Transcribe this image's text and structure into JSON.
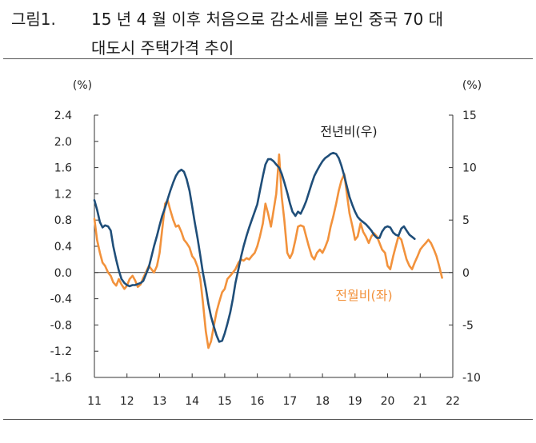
{
  "figure": {
    "label": "그림1.",
    "title_line1": "15 년 4 월 이후 처음으로 감소세를 보인 중국 70 대",
    "title_line2": "대도시 주택가격 추이"
  },
  "chart_data": {
    "type": "line",
    "left_axis_unit": "(%)",
    "right_axis_unit": "(%)",
    "left_ylim": [
      -1.6,
      2.4
    ],
    "right_ylim": [
      -10,
      15
    ],
    "left_ticks": [
      "2.4",
      "2.0",
      "1.6",
      "1.2",
      "0.8",
      "0.4",
      "0.0",
      "-0.4",
      "-0.8",
      "-1.2",
      "-1.6"
    ],
    "right_ticks": [
      "15",
      "10",
      "5",
      "0",
      "-5",
      "-10"
    ],
    "x_tick_labels": [
      "11",
      "12",
      "13",
      "14",
      "15",
      "16",
      "17",
      "18",
      "19",
      "20",
      "21",
      "22"
    ],
    "xlim": [
      2011.0,
      2022.0
    ],
    "grid": false,
    "series": [
      {
        "name": "전월비(좌)",
        "axis": "left",
        "color": "#F2923C",
        "points": [
          [
            2011.0,
            0.82
          ],
          [
            2011.08,
            0.5
          ],
          [
            2011.17,
            0.3
          ],
          [
            2011.25,
            0.15
          ],
          [
            2011.33,
            0.1
          ],
          [
            2011.42,
            0.0
          ],
          [
            2011.5,
            -0.05
          ],
          [
            2011.58,
            -0.15
          ],
          [
            2011.67,
            -0.2
          ],
          [
            2011.75,
            -0.1
          ],
          [
            2011.83,
            -0.18
          ],
          [
            2011.92,
            -0.25
          ],
          [
            2012.0,
            -0.2
          ],
          [
            2012.08,
            -0.1
          ],
          [
            2012.17,
            -0.05
          ],
          [
            2012.25,
            -0.12
          ],
          [
            2012.33,
            -0.22
          ],
          [
            2012.42,
            -0.18
          ],
          [
            2012.5,
            -0.08
          ],
          [
            2012.58,
            0.0
          ],
          [
            2012.67,
            0.1
          ],
          [
            2012.75,
            0.05
          ],
          [
            2012.83,
            0.0
          ],
          [
            2012.92,
            0.1
          ],
          [
            2013.0,
            0.3
          ],
          [
            2013.08,
            0.65
          ],
          [
            2013.17,
            1.05
          ],
          [
            2013.25,
            1.1
          ],
          [
            2013.33,
            0.95
          ],
          [
            2013.42,
            0.8
          ],
          [
            2013.5,
            0.7
          ],
          [
            2013.58,
            0.72
          ],
          [
            2013.67,
            0.62
          ],
          [
            2013.75,
            0.5
          ],
          [
            2013.83,
            0.45
          ],
          [
            2013.92,
            0.38
          ],
          [
            2014.0,
            0.25
          ],
          [
            2014.08,
            0.2
          ],
          [
            2014.17,
            0.08
          ],
          [
            2014.25,
            -0.1
          ],
          [
            2014.33,
            -0.45
          ],
          [
            2014.42,
            -0.9
          ],
          [
            2014.5,
            -1.15
          ],
          [
            2014.58,
            -1.05
          ],
          [
            2014.67,
            -0.8
          ],
          [
            2014.75,
            -0.6
          ],
          [
            2014.83,
            -0.45
          ],
          [
            2014.92,
            -0.3
          ],
          [
            2015.0,
            -0.25
          ],
          [
            2015.08,
            -0.1
          ],
          [
            2015.17,
            -0.05
          ],
          [
            2015.25,
            0.0
          ],
          [
            2015.33,
            0.05
          ],
          [
            2015.42,
            0.15
          ],
          [
            2015.5,
            0.2
          ],
          [
            2015.58,
            0.18
          ],
          [
            2015.67,
            0.22
          ],
          [
            2015.75,
            0.2
          ],
          [
            2015.83,
            0.25
          ],
          [
            2015.92,
            0.3
          ],
          [
            2016.0,
            0.4
          ],
          [
            2016.08,
            0.55
          ],
          [
            2016.17,
            0.75
          ],
          [
            2016.25,
            1.05
          ],
          [
            2016.33,
            0.9
          ],
          [
            2016.42,
            0.7
          ],
          [
            2016.5,
            0.95
          ],
          [
            2016.58,
            1.2
          ],
          [
            2016.67,
            1.8
          ],
          [
            2016.75,
            1.15
          ],
          [
            2016.83,
            0.8
          ],
          [
            2016.92,
            0.3
          ],
          [
            2017.0,
            0.22
          ],
          [
            2017.08,
            0.3
          ],
          [
            2017.17,
            0.5
          ],
          [
            2017.25,
            0.7
          ],
          [
            2017.33,
            0.72
          ],
          [
            2017.42,
            0.7
          ],
          [
            2017.5,
            0.55
          ],
          [
            2017.58,
            0.4
          ],
          [
            2017.67,
            0.25
          ],
          [
            2017.75,
            0.2
          ],
          [
            2017.83,
            0.3
          ],
          [
            2017.92,
            0.35
          ],
          [
            2018.0,
            0.3
          ],
          [
            2018.08,
            0.38
          ],
          [
            2018.17,
            0.5
          ],
          [
            2018.25,
            0.7
          ],
          [
            2018.33,
            0.85
          ],
          [
            2018.42,
            1.05
          ],
          [
            2018.5,
            1.25
          ],
          [
            2018.58,
            1.4
          ],
          [
            2018.67,
            1.5
          ],
          [
            2018.75,
            1.2
          ],
          [
            2018.83,
            0.9
          ],
          [
            2018.92,
            0.7
          ],
          [
            2019.0,
            0.5
          ],
          [
            2019.08,
            0.55
          ],
          [
            2019.17,
            0.75
          ],
          [
            2019.25,
            0.62
          ],
          [
            2019.33,
            0.55
          ],
          [
            2019.42,
            0.45
          ],
          [
            2019.5,
            0.55
          ],
          [
            2019.58,
            0.6
          ],
          [
            2019.67,
            0.55
          ],
          [
            2019.75,
            0.45
          ],
          [
            2019.83,
            0.35
          ],
          [
            2019.92,
            0.3
          ],
          [
            2020.0,
            0.1
          ],
          [
            2020.08,
            0.05
          ],
          [
            2020.17,
            0.25
          ],
          [
            2020.25,
            0.4
          ],
          [
            2020.33,
            0.55
          ],
          [
            2020.42,
            0.5
          ],
          [
            2020.5,
            0.35
          ],
          [
            2020.58,
            0.2
          ],
          [
            2020.67,
            0.1
          ],
          [
            2020.75,
            0.05
          ],
          [
            2020.83,
            0.15
          ],
          [
            2020.92,
            0.25
          ],
          [
            2021.0,
            0.35
          ],
          [
            2021.08,
            0.4
          ],
          [
            2021.17,
            0.45
          ],
          [
            2021.25,
            0.5
          ],
          [
            2021.33,
            0.45
          ],
          [
            2021.42,
            0.35
          ],
          [
            2021.5,
            0.25
          ],
          [
            2021.58,
            0.1
          ],
          [
            2021.67,
            -0.08
          ]
        ]
      },
      {
        "name": "전년비(우)",
        "axis": "right",
        "color": "#1F4E79",
        "points": [
          [
            2011.0,
            6.9
          ],
          [
            2011.08,
            6.0
          ],
          [
            2011.17,
            4.8
          ],
          [
            2011.25,
            4.3
          ],
          [
            2011.33,
            4.5
          ],
          [
            2011.42,
            4.4
          ],
          [
            2011.5,
            4.0
          ],
          [
            2011.58,
            2.5
          ],
          [
            2011.67,
            1.2
          ],
          [
            2011.75,
            0.2
          ],
          [
            2011.83,
            -0.6
          ],
          [
            2011.92,
            -1.0
          ],
          [
            2012.0,
            -1.2
          ],
          [
            2012.08,
            -1.3
          ],
          [
            2012.17,
            -1.2
          ],
          [
            2012.25,
            -1.2
          ],
          [
            2012.33,
            -1.1
          ],
          [
            2012.42,
            -1.0
          ],
          [
            2012.5,
            -0.8
          ],
          [
            2012.58,
            -0.2
          ],
          [
            2012.67,
            0.5
          ],
          [
            2012.75,
            1.5
          ],
          [
            2012.83,
            2.5
          ],
          [
            2012.92,
            3.5
          ],
          [
            2013.0,
            4.5
          ],
          [
            2013.08,
            5.4
          ],
          [
            2013.17,
            6.2
          ],
          [
            2013.25,
            7.0
          ],
          [
            2013.33,
            7.8
          ],
          [
            2013.42,
            8.6
          ],
          [
            2013.5,
            9.2
          ],
          [
            2013.58,
            9.6
          ],
          [
            2013.67,
            9.8
          ],
          [
            2013.75,
            9.6
          ],
          [
            2013.83,
            8.9
          ],
          [
            2013.92,
            7.8
          ],
          [
            2014.0,
            6.3
          ],
          [
            2014.08,
            4.8
          ],
          [
            2014.17,
            3.2
          ],
          [
            2014.25,
            1.6
          ],
          [
            2014.33,
            0.0
          ],
          [
            2014.42,
            -1.5
          ],
          [
            2014.5,
            -3.0
          ],
          [
            2014.58,
            -4.2
          ],
          [
            2014.67,
            -5.2
          ],
          [
            2014.75,
            -6.0
          ],
          [
            2014.83,
            -6.6
          ],
          [
            2014.92,
            -6.5
          ],
          [
            2015.0,
            -5.8
          ],
          [
            2015.08,
            -4.9
          ],
          [
            2015.17,
            -3.8
          ],
          [
            2015.25,
            -2.5
          ],
          [
            2015.33,
            -1.0
          ],
          [
            2015.42,
            0.3
          ],
          [
            2015.5,
            1.5
          ],
          [
            2015.58,
            2.5
          ],
          [
            2015.67,
            3.5
          ],
          [
            2015.75,
            4.3
          ],
          [
            2015.83,
            5.0
          ],
          [
            2015.92,
            5.8
          ],
          [
            2016.0,
            6.5
          ],
          [
            2016.08,
            7.8
          ],
          [
            2016.17,
            9.2
          ],
          [
            2016.25,
            10.3
          ],
          [
            2016.33,
            10.8
          ],
          [
            2016.42,
            10.8
          ],
          [
            2016.5,
            10.6
          ],
          [
            2016.58,
            10.3
          ],
          [
            2016.67,
            10.0
          ],
          [
            2016.75,
            9.4
          ],
          [
            2016.83,
            8.6
          ],
          [
            2016.92,
            7.6
          ],
          [
            2017.0,
            6.6
          ],
          [
            2017.08,
            5.8
          ],
          [
            2017.17,
            5.4
          ],
          [
            2017.25,
            5.8
          ],
          [
            2017.33,
            5.6
          ],
          [
            2017.42,
            6.2
          ],
          [
            2017.5,
            6.8
          ],
          [
            2017.58,
            7.6
          ],
          [
            2017.67,
            8.5
          ],
          [
            2017.75,
            9.2
          ],
          [
            2017.83,
            9.7
          ],
          [
            2017.92,
            10.2
          ],
          [
            2018.0,
            10.6
          ],
          [
            2018.08,
            10.9
          ],
          [
            2018.17,
            11.1
          ],
          [
            2018.25,
            11.3
          ],
          [
            2018.33,
            11.4
          ],
          [
            2018.42,
            11.3
          ],
          [
            2018.5,
            10.9
          ],
          [
            2018.58,
            10.2
          ],
          [
            2018.67,
            9.2
          ],
          [
            2018.75,
            8.2
          ],
          [
            2018.83,
            7.2
          ],
          [
            2018.92,
            6.4
          ],
          [
            2019.0,
            5.8
          ],
          [
            2019.08,
            5.3
          ],
          [
            2019.17,
            5.0
          ],
          [
            2019.25,
            4.8
          ],
          [
            2019.33,
            4.6
          ],
          [
            2019.42,
            4.3
          ],
          [
            2019.5,
            4.0
          ],
          [
            2019.58,
            3.6
          ],
          [
            2019.67,
            3.3
          ],
          [
            2019.75,
            3.3
          ],
          [
            2019.83,
            3.9
          ],
          [
            2019.92,
            4.3
          ],
          [
            2020.0,
            4.4
          ],
          [
            2020.08,
            4.3
          ],
          [
            2020.17,
            3.8
          ],
          [
            2020.25,
            3.6
          ],
          [
            2020.33,
            3.5
          ],
          [
            2020.42,
            4.2
          ],
          [
            2020.5,
            4.4
          ],
          [
            2020.58,
            4.0
          ],
          [
            2020.67,
            3.6
          ],
          [
            2020.75,
            3.4
          ],
          [
            2020.83,
            3.2
          ]
        ]
      }
    ],
    "annotations": [
      {
        "text": "전년비(우)",
        "series": "전년비(우)"
      },
      {
        "text": "전월비(좌)",
        "series": "전월비(좌)"
      }
    ]
  }
}
